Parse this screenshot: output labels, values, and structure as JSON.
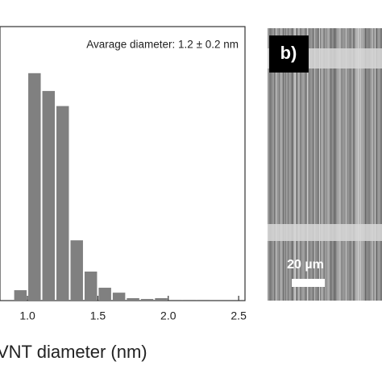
{
  "chart_data": {
    "type": "histogram",
    "annotation": "Avarage diameter: 1.2 ± 0.2 nm",
    "x_label": "VNT diameter (nm)",
    "bins": [
      0.9,
      1.0,
      1.1,
      1.2,
      1.3,
      1.4,
      1.5,
      1.6,
      1.7,
      1.8,
      1.9,
      2.0,
      2.1,
      2.2,
      2.3
    ],
    "values": [
      3.8,
      83,
      76.5,
      71,
      22,
      10.6,
      4.7,
      2.9,
      0.9,
      0.6,
      0.9,
      0.3,
      0.3,
      0.3
    ],
    "color": "#808080",
    "xlim": [
      0.805,
      2.545
    ],
    "xticks": [
      {
        "value": 1.0,
        "label": "1.0"
      },
      1.5,
      {
        "value": 2.0,
        "label": "2.0"
      },
      2.5
    ],
    "ylim": [
      0,
      100
    ]
  },
  "panel_b": {
    "label": "b)",
    "scale_bar": "20 µm"
  }
}
